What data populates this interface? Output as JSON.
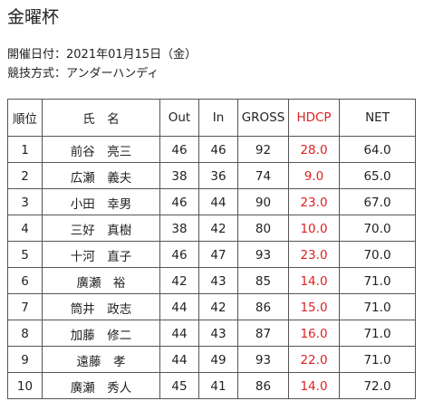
{
  "title": "金曜杯",
  "meta": {
    "date": "開催日付：2021年01月15日（金）",
    "method": "競技方式：アンダーハンディ"
  },
  "table": {
    "headers": {
      "rank": "順位",
      "name": "氏　名",
      "out": "Out",
      "in": "In",
      "gross": "GROSS",
      "hdcp": "HDCP",
      "net": "NET"
    },
    "hdcp_color": "#dd2222",
    "rows": [
      {
        "rank": "1",
        "name": "前谷　亮三",
        "out": "46",
        "in": "46",
        "gross": "92",
        "hdcp": "28.0",
        "net": "64.0"
      },
      {
        "rank": "2",
        "name": "広瀬　義夫",
        "out": "38",
        "in": "36",
        "gross": "74",
        "hdcp": "9.0",
        "net": "65.0"
      },
      {
        "rank": "3",
        "name": "小田　幸男",
        "out": "46",
        "in": "44",
        "gross": "90",
        "hdcp": "23.0",
        "net": "67.0"
      },
      {
        "rank": "4",
        "name": "三好　真樹",
        "out": "38",
        "in": "42",
        "gross": "80",
        "hdcp": "10.0",
        "net": "70.0"
      },
      {
        "rank": "5",
        "name": "十河　直子",
        "out": "46",
        "in": "47",
        "gross": "93",
        "hdcp": "23.0",
        "net": "70.0"
      },
      {
        "rank": "6",
        "name": "廣瀬　裕",
        "out": "42",
        "in": "43",
        "gross": "85",
        "hdcp": "14.0",
        "net": "71.0"
      },
      {
        "rank": "7",
        "name": "筒井　政志",
        "out": "44",
        "in": "42",
        "gross": "86",
        "hdcp": "15.0",
        "net": "71.0"
      },
      {
        "rank": "8",
        "name": "加藤　修二",
        "out": "44",
        "in": "43",
        "gross": "87",
        "hdcp": "16.0",
        "net": "71.0"
      },
      {
        "rank": "9",
        "name": "遠藤　孝",
        "out": "44",
        "in": "49",
        "gross": "93",
        "hdcp": "22.0",
        "net": "71.0"
      },
      {
        "rank": "10",
        "name": "廣瀬　秀人",
        "out": "45",
        "in": "41",
        "gross": "86",
        "hdcp": "14.0",
        "net": "72.0"
      }
    ]
  }
}
